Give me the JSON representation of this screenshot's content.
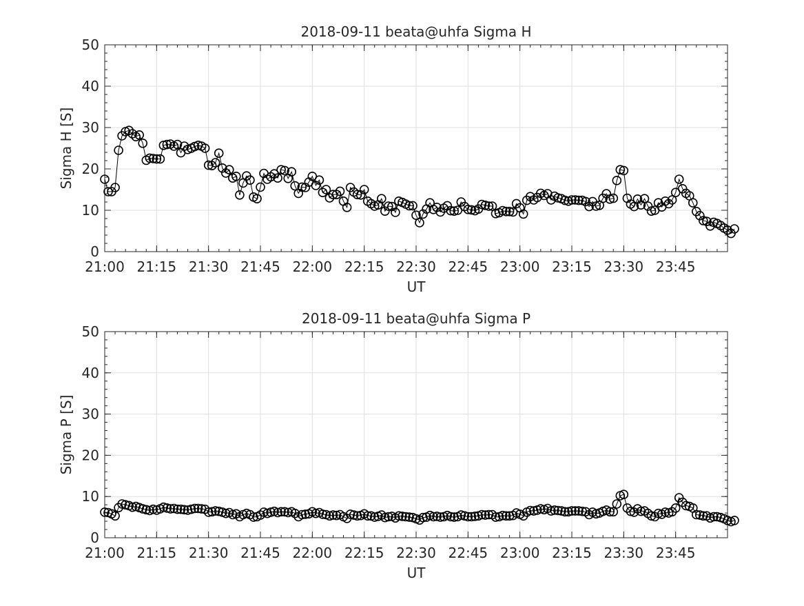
{
  "chart_data": [
    {
      "type": "line",
      "title": "2018-09-11  beata@uhfa Sigma H",
      "xlabel": "UT",
      "ylabel": "Sigma H [S]",
      "ylim": [
        0,
        50
      ],
      "yticks": [
        "0",
        "10",
        "20",
        "30",
        "40",
        "50"
      ],
      "xlim": [
        "21:00",
        "24:00"
      ],
      "xticks": [
        "21:00",
        "21:15",
        "21:30",
        "21:45",
        "22:00",
        "22:15",
        "22:30",
        "22:45",
        "23:00",
        "23:15",
        "23:30",
        "23:45"
      ],
      "grid": true,
      "marker": "open-circle",
      "series": [
        {
          "start": "21:00",
          "interval_minutes": 1,
          "color": "#000000",
          "values": [
            17.5,
            14.5,
            14.5,
            15.5,
            24.5,
            28,
            29,
            29.3,
            28.5,
            27.8,
            28.2,
            26.2,
            22.1,
            22.6,
            22.5,
            22.4,
            22.4,
            25.7,
            25.9,
            26,
            25.5,
            25.9,
            23.9,
            25.5,
            24.7,
            25,
            25.4,
            25.7,
            25.5,
            25,
            20.9,
            20.8,
            21.5,
            23.8,
            20.2,
            19,
            19.8,
            17.8,
            18.2,
            13.7,
            16.6,
            18.3,
            17.3,
            13.2,
            12.8,
            15.6,
            18.9,
            17.5,
            18.1,
            18.8,
            17.8,
            19.8,
            19.6,
            17.7,
            19.3,
            15.9,
            14.1,
            15.6,
            15.5,
            16.8,
            18.2,
            16,
            17.3,
            14.3,
            15,
            13,
            13.8,
            13.8,
            14.6,
            12.2,
            10.7,
            15.5,
            14.4,
            13.8,
            13.7,
            15,
            12.2,
            11.6,
            11,
            11.3,
            12.8,
            9.8,
            11,
            10.9,
            9.5,
            12.2,
            11.9,
            11.5,
            11.1,
            11.1,
            8.8,
            7,
            9.1,
            10.3,
            11.8,
            10.2,
            10.7,
            9.6,
            10.5,
            11.1,
            9.9,
            9.8,
            10,
            12,
            10.9,
            10.2,
            10.1,
            9.9,
            10.3,
            11.4,
            11.2,
            11,
            11,
            9.2,
            9.4,
            9.9,
            9.7,
            9.7,
            9.6,
            11.6,
            10.6,
            9.1,
            12.4,
            13.3,
            12.5,
            13.1,
            14.1,
            13.6,
            14,
            12.5,
            13.4,
            13,
            12.8,
            12.4,
            12.2,
            12.5,
            12.5,
            12.4,
            12.4,
            12.1,
            10.9,
            12.1,
            11,
            11.2,
            12.9,
            14,
            12.7,
            12.9,
            17.2,
            19.8,
            19.6,
            12.9,
            11.5,
            10.9,
            12.7,
            11.3,
            12.8,
            11,
            9.8,
            10,
            11.8,
            10.8,
            12.2,
            11.6,
            12.5,
            14.3,
            17.5,
            15.2,
            14.1,
            13.5,
            11.8,
            9.7,
            8.7,
            7.5,
            7.3,
            6.2,
            7.1,
            6.8,
            6.3,
            5.7,
            5.2,
            4.4,
            5.5
          ]
        }
      ]
    },
    {
      "type": "line",
      "title": "2018-09-11  beata@uhfa Sigma P",
      "xlabel": "UT",
      "ylabel": "Sigma P [S]",
      "ylim": [
        0,
        50
      ],
      "yticks": [
        "0",
        "10",
        "20",
        "30",
        "40",
        "50"
      ],
      "xlim": [
        "21:00",
        "24:00"
      ],
      "xticks": [
        "21:00",
        "21:15",
        "21:30",
        "21:45",
        "22:00",
        "22:15",
        "22:30",
        "22:45",
        "23:00",
        "23:15",
        "23:30",
        "23:45"
      ],
      "grid": true,
      "marker": "open-circle",
      "series": [
        {
          "start": "21:00",
          "interval_minutes": 1,
          "color": "#000000",
          "values": [
            6.2,
            6.1,
            5.8,
            5.3,
            7.3,
            8.2,
            8,
            7.8,
            7.4,
            7.6,
            7.3,
            7,
            6.8,
            6.6,
            6.9,
            6.7,
            7,
            7.4,
            7.2,
            7,
            7.1,
            6.9,
            6.9,
            6.8,
            6.7,
            6.9,
            7.1,
            7.1,
            7,
            6.9,
            6.2,
            6.3,
            6.5,
            6.4,
            6.2,
            5.9,
            6.1,
            5.6,
            5.8,
            5.1,
            5.6,
            5.9,
            5.6,
            5,
            5.1,
            5.5,
            6.2,
            5.9,
            6.2,
            6.4,
            6.1,
            6.3,
            6.3,
            6.1,
            6.3,
            5.9,
            5.1,
            5.6,
            5.7,
            5.8,
            6.3,
            5.9,
            6.1,
            5.7,
            5.6,
            5.3,
            5.5,
            5.4,
            5.6,
            5.1,
            4.7,
            5.7,
            5.5,
            5.3,
            5.4,
            5.8,
            5.3,
            5.3,
            5,
            5.2,
            5.5,
            4.9,
            5.1,
            5.2,
            4.8,
            5.3,
            5.2,
            5.1,
            5,
            4.9,
            4.6,
            4.3,
            4.9,
            5,
            5.4,
            5.1,
            5.2,
            5,
            5.1,
            5.4,
            5.1,
            5,
            5.1,
            5.5,
            5.3,
            5.1,
            5.1,
            5.2,
            5.3,
            5.6,
            5.5,
            5.6,
            5.6,
            5,
            5.1,
            5.4,
            5.3,
            5.3,
            5.4,
            6,
            5.7,
            5.3,
            6.2,
            6.6,
            6.5,
            6.7,
            7,
            6.8,
            7.1,
            6.5,
            6.7,
            6.6,
            6.5,
            6.3,
            6.3,
            6.5,
            6.5,
            6.5,
            6.4,
            6.3,
            5.6,
            6.2,
            5.8,
            6,
            6.4,
            6.7,
            6.3,
            6.3,
            8.2,
            10.2,
            10.5,
            7.2,
            6.4,
            6.2,
            7,
            6.4,
            6.5,
            5.9,
            5.3,
            5.1,
            5.9,
            5.7,
            6.2,
            6,
            6.3,
            7.2,
            9.7,
            8.6,
            7.8,
            7.6,
            7.2,
            5.6,
            5.5,
            5.3,
            5.3,
            4.8,
            5.1,
            5.1,
            4.9,
            4.6,
            4.2,
            3.9,
            4.2
          ]
        }
      ]
    }
  ]
}
